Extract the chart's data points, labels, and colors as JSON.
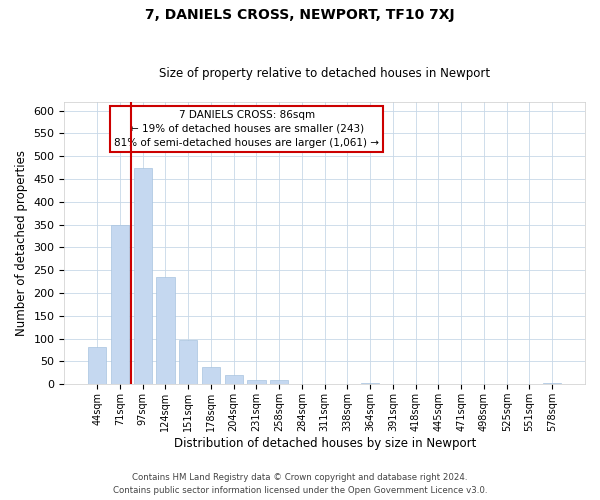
{
  "title": "7, DANIELS CROSS, NEWPORT, TF10 7XJ",
  "subtitle": "Size of property relative to detached houses in Newport",
  "xlabel": "Distribution of detached houses by size in Newport",
  "ylabel": "Number of detached properties",
  "bar_color": "#c5d8f0",
  "bar_edge_color": "#a8c4e0",
  "vline_color": "#cc0000",
  "categories": [
    "44sqm",
    "71sqm",
    "97sqm",
    "124sqm",
    "151sqm",
    "178sqm",
    "204sqm",
    "231sqm",
    "258sqm",
    "284sqm",
    "311sqm",
    "338sqm",
    "364sqm",
    "391sqm",
    "418sqm",
    "445sqm",
    "471sqm",
    "498sqm",
    "525sqm",
    "551sqm",
    "578sqm"
  ],
  "values": [
    82,
    350,
    475,
    236,
    97,
    37,
    20,
    9,
    9,
    0,
    0,
    0,
    3,
    0,
    0,
    0,
    0,
    0,
    0,
    0,
    3
  ],
  "vline_position": 1.5,
  "ylim": [
    0,
    620
  ],
  "yticks": [
    0,
    50,
    100,
    150,
    200,
    250,
    300,
    350,
    400,
    450,
    500,
    550,
    600
  ],
  "annotation_line1": "7 DANIELS CROSS: 86sqm",
  "annotation_line2": "← 19% of detached houses are smaller (243)",
  "annotation_line3": "81% of semi-detached houses are larger (1,061) →",
  "footer_line1": "Contains HM Land Registry data © Crown copyright and database right 2024.",
  "footer_line2": "Contains public sector information licensed under the Open Government Licence v3.0.",
  "background_color": "#ffffff",
  "grid_color": "#c8d8e8"
}
